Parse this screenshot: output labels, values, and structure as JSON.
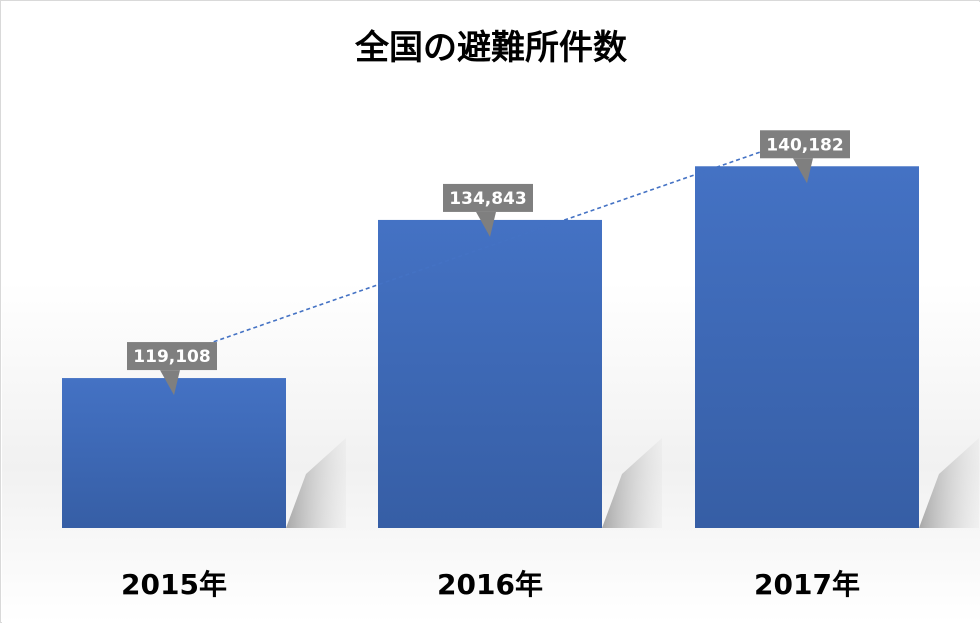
{
  "chart_data": {
    "type": "bar",
    "title": "全国の避難所件数",
    "categories": [
      "2015年",
      "2016年",
      "2017年"
    ],
    "values": [
      119108,
      134843,
      140182
    ],
    "data_labels": [
      "119,108",
      "134,843",
      "140,182"
    ],
    "trendline": true,
    "bar_color": "#4472c4",
    "label_box_color": "#7f7f7f",
    "trendline_color": "#4472c4",
    "grid": false,
    "legend": "none"
  }
}
